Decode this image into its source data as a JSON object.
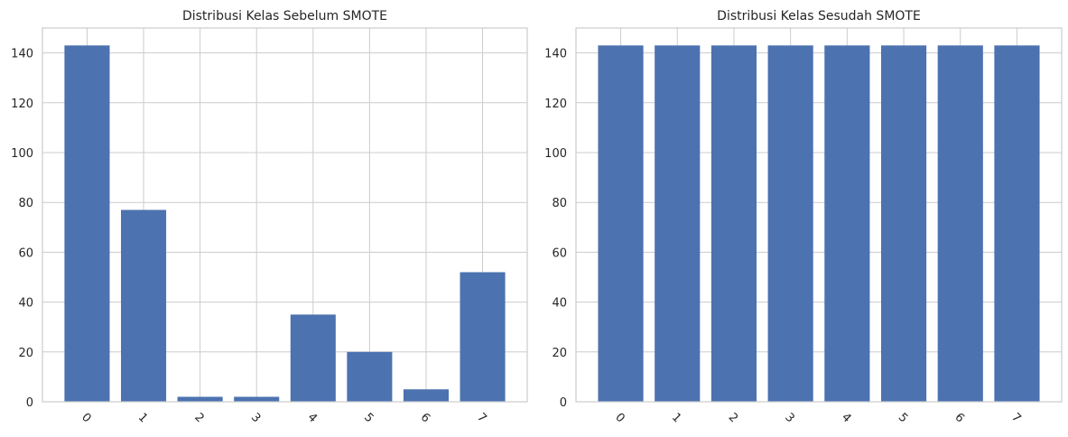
{
  "chart_data": [
    {
      "type": "bar",
      "title": "Distribusi Kelas Sebelum SMOTE",
      "categories": [
        "0",
        "1",
        "2",
        "3",
        "4",
        "5",
        "6",
        "7"
      ],
      "values": [
        143,
        77,
        2,
        2,
        35,
        20,
        5,
        52
      ],
      "ylim": [
        0,
        150
      ],
      "yticks": [
        0,
        20,
        40,
        60,
        80,
        100,
        120,
        140
      ],
      "xlabel": "",
      "ylabel": "",
      "grid": true,
      "bar_color": "#4c72b0",
      "xtick_rotation": 45
    },
    {
      "type": "bar",
      "title": "Distribusi Kelas Sesudah SMOTE",
      "categories": [
        "0",
        "1",
        "2",
        "3",
        "4",
        "5",
        "6",
        "7"
      ],
      "values": [
        143,
        143,
        143,
        143,
        143,
        143,
        143,
        143
      ],
      "ylim": [
        0,
        150
      ],
      "yticks": [
        0,
        20,
        40,
        60,
        80,
        100,
        120,
        140
      ],
      "xlabel": "",
      "ylabel": "",
      "grid": true,
      "bar_color": "#4c72b0",
      "xtick_rotation": 45
    }
  ]
}
